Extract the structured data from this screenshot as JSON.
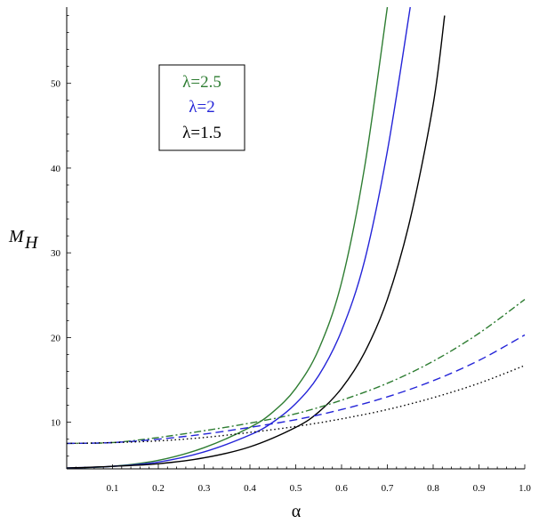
{
  "chart_data": {
    "type": "line",
    "xlabel": "α",
    "ylabel": {
      "main": "M",
      "sub": "H"
    },
    "xlim": [
      0,
      1.0
    ],
    "ylim": [
      4.5,
      59
    ],
    "xticks": [
      "0.1",
      "0.2",
      "0.3",
      "0.4",
      "0.5",
      "0.6",
      "0.7",
      "0.8",
      "0.9",
      "1.0"
    ],
    "yticks": [
      "10",
      "20",
      "30",
      "40",
      "50"
    ],
    "grid": false,
    "legend": {
      "placement": "top-left",
      "entries": [
        {
          "label": "λ=2.5",
          "color": "#2e7d32"
        },
        {
          "label": "λ=2",
          "color": "#2424d8"
        },
        {
          "label": "λ=1.5",
          "color": "#000000"
        }
      ]
    },
    "series": [
      {
        "lambda": "2.5",
        "style": "solid",
        "color": "#2e7d32",
        "x": [
          0.0,
          0.1,
          0.2,
          0.3,
          0.4,
          0.45,
          0.5,
          0.55,
          0.6,
          0.65,
          0.7
        ],
        "y": [
          4.6,
          4.8,
          5.5,
          7.0,
          9.4,
          11.2,
          14.0,
          18.6,
          26.5,
          40.0,
          59
        ]
      },
      {
        "lambda": "2",
        "style": "solid",
        "color": "#2424d8",
        "x": [
          0.0,
          0.1,
          0.2,
          0.3,
          0.4,
          0.45,
          0.5,
          0.55,
          0.6,
          0.65,
          0.7,
          0.75
        ],
        "y": [
          4.6,
          4.8,
          5.3,
          6.5,
          8.5,
          10.0,
          12.2,
          15.5,
          20.8,
          29.0,
          42.0,
          59
        ]
      },
      {
        "lambda": "1.5",
        "style": "solid",
        "color": "#000000",
        "x": [
          0.0,
          0.1,
          0.2,
          0.3,
          0.4,
          0.5,
          0.55,
          0.6,
          0.65,
          0.7,
          0.75,
          0.8,
          0.825
        ],
        "y": [
          4.6,
          4.8,
          5.1,
          5.8,
          7.1,
          9.4,
          11.2,
          14.0,
          18.2,
          24.5,
          34.0,
          47.5,
          58
        ]
      },
      {
        "lambda": "2.5",
        "style": "dashdot",
        "color": "#2e7d32",
        "x": [
          0.0,
          0.1,
          0.2,
          0.3,
          0.4,
          0.5,
          0.6,
          0.7,
          0.8,
          0.9,
          1.0
        ],
        "y": [
          7.5,
          7.6,
          8.2,
          9.0,
          9.9,
          11.0,
          12.6,
          14.6,
          17.2,
          20.5,
          24.5
        ]
      },
      {
        "lambda": "2",
        "style": "dashed",
        "color": "#2424d8",
        "x": [
          0.0,
          0.1,
          0.2,
          0.3,
          0.4,
          0.5,
          0.6,
          0.7,
          0.8,
          0.9,
          1.0
        ],
        "y": [
          7.5,
          7.6,
          8.0,
          8.6,
          9.4,
          10.3,
          11.5,
          13.0,
          14.9,
          17.3,
          20.3
        ]
      },
      {
        "lambda": "1.5",
        "style": "dotted",
        "color": "#000000",
        "x": [
          0.0,
          0.1,
          0.2,
          0.3,
          0.4,
          0.5,
          0.6,
          0.7,
          0.8,
          0.9,
          1.0
        ],
        "y": [
          7.5,
          7.6,
          7.8,
          8.2,
          8.8,
          9.5,
          10.4,
          11.5,
          12.9,
          14.6,
          16.7
        ]
      }
    ]
  }
}
